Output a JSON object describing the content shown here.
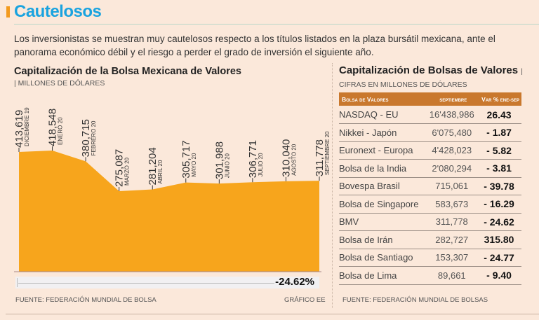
{
  "header": {
    "title": "Cautelosos",
    "lead": "Los inversionistas se muestran muy cautelosos respecto a los títulos listados en la plaza bursátil mexicana, ante el panorama económico débil y el riesgo a perder el grado de inversión el siguiente año."
  },
  "colors": {
    "accent": "#f39a1e",
    "title": "#1aa3df",
    "area": "#f7a51c",
    "table_header": "#c9782d",
    "background": "#fbe8da"
  },
  "chart_data": {
    "type": "area",
    "title": "Capitalización de la Bolsa Mexicana de Valores",
    "subtitle": "| MILLONES DE DÓLARES",
    "categories": [
      "DICIEMBRE 19",
      "ENERO 20",
      "FEBRERO 20",
      "MARZO 20",
      "ABRIL 20",
      "MAYO 20",
      "JUNIO 20",
      "JULIO 20",
      "AGOSTO 20",
      "SEPTIEMBRE 20"
    ],
    "values": [
      413619,
      418548,
      380715,
      275087,
      281204,
      305717,
      301988,
      306771,
      310040,
      311778
    ],
    "value_labels": [
      "413,619",
      "418,548",
      "380,715",
      "275,087",
      "281,204",
      "305,717",
      "301,988",
      "306,771",
      "310,040",
      "311,778"
    ],
    "change_label": "-24.62%",
    "source": "FUENTE: FEDERACIÓN MUNDIAL DE BOLSA",
    "credit": "GRÁFICO EE"
  },
  "table": {
    "title": "Capitalización de Bolsas de Valores",
    "subtitle": "| CIFRAS EN MILLONES DE DÓLARES",
    "columns": [
      "Bolsa de Valores",
      "septiembre",
      "Var % ene-sep"
    ],
    "rows": [
      [
        "NASDAQ - EU",
        "16'438,986",
        "26.43"
      ],
      [
        "Nikkei - Japón",
        "6'075,480",
        "- 1.87"
      ],
      [
        "Euronext - Europa",
        "4'428,023",
        "- 5.82"
      ],
      [
        "Bolsa de la India",
        "2'080,294",
        "- 3.81"
      ],
      [
        "Bovespa Brasil",
        "715,061",
        "- 39.78"
      ],
      [
        "Bolsa de Singapore",
        "583,673",
        "- 16.29"
      ],
      [
        "BMV",
        "311,778",
        "- 24.62"
      ],
      [
        "Bolsa de Irán",
        "282,727",
        "315.80"
      ],
      [
        "Bolsa de Santiago",
        "153,307",
        "- 24.77"
      ],
      [
        "Bolsa de Lima",
        "89,661",
        "- 9.40"
      ]
    ],
    "source": "FUENTE: FEDERACIÓN MUNDIAL DE BOLSAS"
  }
}
